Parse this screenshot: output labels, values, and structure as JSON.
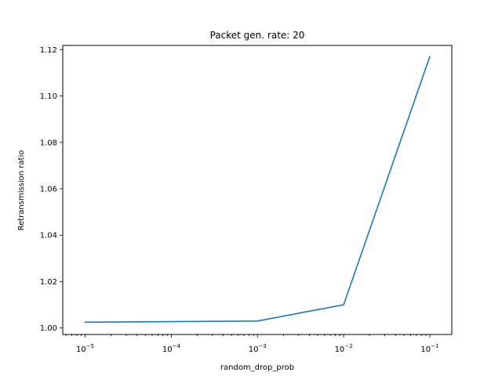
{
  "chart_data": {
    "type": "line",
    "title": "Packet gen. rate: 20",
    "xlabel": "random_drop_prob",
    "ylabel": "Retransmission ratio",
    "xscale": "log",
    "x_ticks": [
      {
        "base": "10",
        "exp": "−5",
        "value": 1e-05
      },
      {
        "base": "10",
        "exp": "−4",
        "value": 0.0001
      },
      {
        "base": "10",
        "exp": "−3",
        "value": 0.001
      },
      {
        "base": "10",
        "exp": "−2",
        "value": 0.01
      },
      {
        "base": "10",
        "exp": "−1",
        "value": 0.1
      }
    ],
    "y_ticks": [
      "1.00",
      "1.02",
      "1.04",
      "1.06",
      "1.08",
      "1.10",
      "1.12"
    ],
    "xlim": [
      5.5e-06,
      0.18
    ],
    "ylim": [
      0.9972,
      1.1218
    ],
    "grid": false,
    "series": [
      {
        "color": "#1f77b4",
        "x": [
          1e-05,
          0.001,
          0.01,
          0.1
        ],
        "y": [
          1.0025,
          1.003,
          1.01,
          1.117
        ]
      }
    ]
  }
}
